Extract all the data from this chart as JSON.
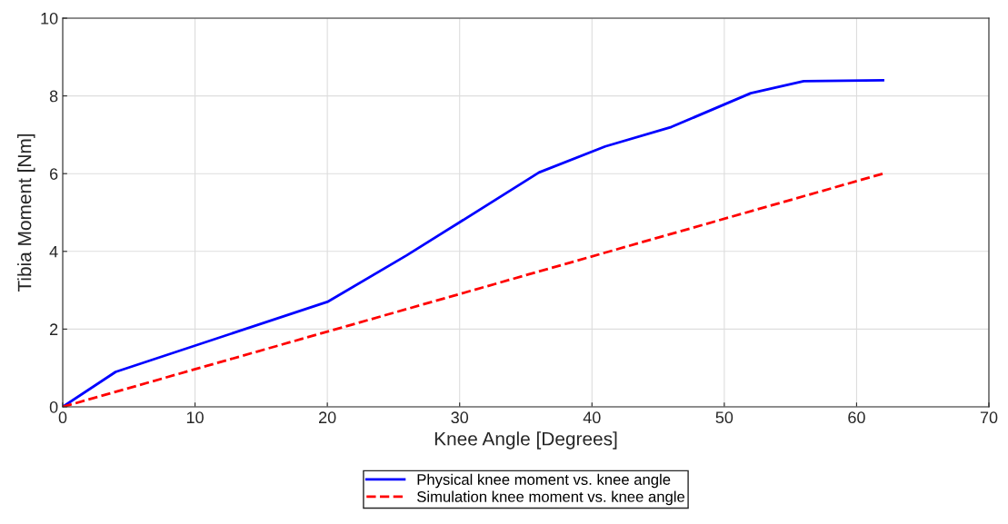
{
  "chart_data": {
    "type": "line",
    "xlabel": "Knee Angle [Degrees]",
    "ylabel": "Tibia Moment [Nm]",
    "xlim": [
      0,
      70
    ],
    "xticks": [
      0,
      10,
      20,
      30,
      40,
      50,
      60,
      70
    ],
    "ylim": [
      0,
      10
    ],
    "yticks": [
      0,
      2,
      4,
      6,
      8,
      10
    ],
    "grid": true,
    "legend": "bottom",
    "series": [
      {
        "name": "Physical knee moment vs. knee angle",
        "color": "#0000ff",
        "line_style": "solid",
        "x": [
          0,
          4,
          20,
          26,
          30,
          36,
          41,
          46,
          52,
          56,
          62
        ],
        "values": [
          0,
          0.9,
          2.7,
          3.9,
          4.75,
          6.03,
          6.7,
          7.2,
          8.07,
          8.38,
          8.4
        ]
      },
      {
        "name": "Simulation knee moment vs. knee angle",
        "color": "#ff0000",
        "line_style": "dashed",
        "x": [
          0,
          62
        ],
        "values": [
          0,
          6.0
        ]
      }
    ]
  }
}
